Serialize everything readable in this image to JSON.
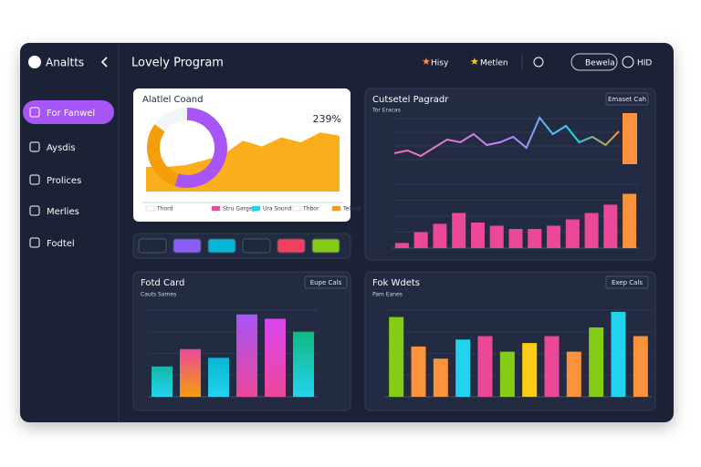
{
  "sidebar": {
    "brand": "Analtts",
    "items": [
      "For Fanwel",
      "Aysdis",
      "Prolices",
      "Merlies",
      "Fodtel"
    ]
  },
  "header": {
    "title": "Lovely Program",
    "actions": [
      "Hisy",
      "Metlen",
      "Bewela",
      "HID"
    ]
  },
  "panels": [
    {
      "title": "Alatlel Coand",
      "value": "239%",
      "donut": {
        "type": "pie",
        "values": [
          55,
          30,
          15
        ],
        "colors": [
          "#a855f7",
          "#f59e0b",
          "#f1f5f9"
        ]
      },
      "area": {
        "type": "area",
        "values": [
          30,
          30,
          32,
          38,
          45,
          62,
          55,
          66,
          60,
          72,
          68
        ],
        "color": "#fbae1c",
        "ylim": [
          0,
          100
        ]
      },
      "legend": [
        {
          "name": "Thord",
          "color": "#ffffff"
        },
        {
          "name": "Stru Gargey",
          "color": "#ec4899"
        },
        {
          "name": "Ura Sound",
          "color": "#22d3ee"
        },
        {
          "name": "Thbor",
          "color": "#ffffff"
        },
        {
          "name": "Teleas",
          "color": "#f59e0b"
        }
      ]
    },
    {
      "title": "Cutsetel Pagradr",
      "subtitle": "Tor Eracas",
      "button": "Emaset Cah",
      "line": {
        "type": "line",
        "values": [
          20,
          25,
          15,
          30,
          45,
          40,
          55,
          35,
          40,
          50,
          30,
          85,
          55,
          70,
          40,
          50,
          35,
          60
        ],
        "ylim": [
          0,
          100
        ]
      },
      "bars": {
        "type": "bar",
        "values": [
          8,
          25,
          38,
          55,
          40,
          35,
          30,
          30,
          35,
          45,
          55,
          68,
          85
        ],
        "colors": [
          "#ec4899",
          "#ec4899",
          "#ec4899",
          "#ec4899",
          "#ec4899",
          "#ec4899",
          "#ec4899",
          "#ec4899",
          "#ec4899",
          "#ec4899",
          "#ec4899",
          "#ec4899",
          "#fb923c"
        ],
        "ylim": [
          0,
          100
        ]
      },
      "highlight": {
        "value": 80,
        "color": "#fb923c"
      }
    },
    {
      "title": "Fotd Card",
      "subtitle": "Cauts Sames",
      "button": "Eupe Cals",
      "bars": {
        "type": "bar",
        "values": [
          35,
          55,
          45,
          95,
          90,
          75
        ],
        "colors": [
          [
            "#22d3ee",
            "#14b8a6"
          ],
          [
            "#f59e0b",
            "#ec4899"
          ],
          [
            "#22d3ee",
            "#06b6d4"
          ],
          [
            "#ec4899",
            "#a855f7"
          ],
          [
            "#ec4899",
            "#d946ef"
          ],
          [
            "#22d3ee",
            "#10b981"
          ]
        ],
        "ylim": [
          0,
          100
        ]
      }
    },
    {
      "title": "Fok Wdets",
      "subtitle": "Pam Eanes",
      "button": "Exep Cals",
      "bars": {
        "type": "bar",
        "values": [
          92,
          58,
          44,
          66,
          70,
          52,
          62,
          70,
          52,
          80,
          98,
          70
        ],
        "colors": [
          "#84cc16",
          "#fb923c",
          "#fb923c",
          "#22d3ee",
          "#ec4899",
          "#84cc16",
          "#facc15",
          "#ec4899",
          "#fb923c",
          "#84cc16",
          "#22d3ee",
          "#fb923c"
        ],
        "ylim": [
          0,
          100
        ]
      }
    }
  ]
}
